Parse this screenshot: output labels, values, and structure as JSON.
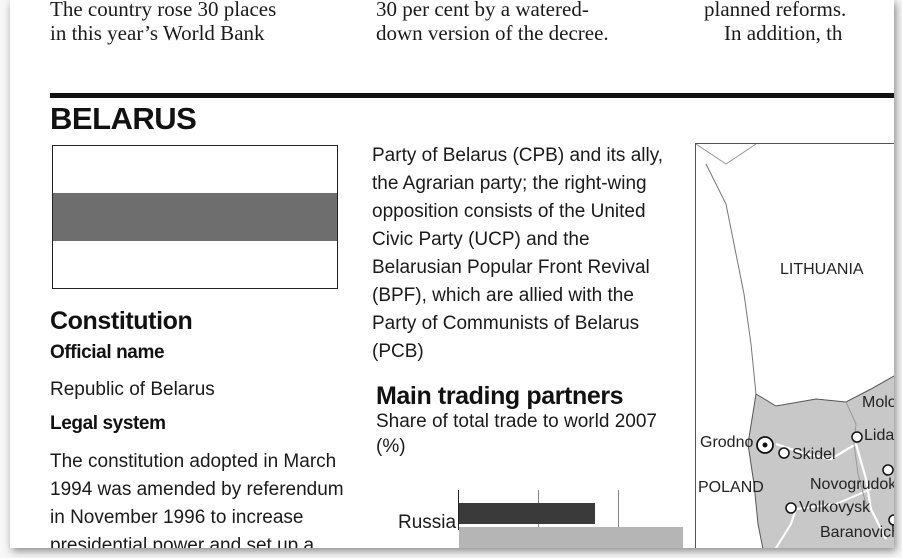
{
  "top_text": {
    "col1": [
      "The country rose 30 places",
      "in this year’s World Bank"
    ],
    "col2": [
      "30 per cent by a watered-",
      "down version of the decree."
    ],
    "col3": [
      "planned reforms.",
      "In addition, th"
    ]
  },
  "country": "BELARUS",
  "flag": {
    "colors": {
      "top": "#ffffff",
      "middle": "#6e6e6e",
      "bottom": "#ffffff"
    }
  },
  "constitution": {
    "heading": "Constitution",
    "official_name_label": "Official name",
    "official_name": "Republic of Belarus",
    "legal_system_label": "Legal system",
    "legal_system_lines": [
      "The constitution adopted in March",
      "1994 was amended by referendum",
      "in November 1996 to increase",
      "presidential power and set up a"
    ]
  },
  "parties_text": [
    "Party of Belarus (CPB) and its ally,",
    "the Agrarian party; the right-wing",
    "opposition consists of the United",
    "Civic Party (UCP) and the",
    "Belarusian Popular Front Revival",
    "(BPF), which are allied with the",
    "Party of Communists of Belarus",
    "(PCB)"
  ],
  "trading": {
    "heading": "Main trading partners",
    "subtitle_lines": [
      "Share of total trade to world 2007",
      "(%)"
    ]
  },
  "chart_data": {
    "type": "bar",
    "orientation": "horizontal",
    "title": "Main trading partners",
    "subtitle": "Share of total trade to world 2007 (%)",
    "categories": [
      "Russia"
    ],
    "series": [
      {
        "values": [
          17
        ],
        "color": "#3a3a3a"
      },
      {
        "values": [
          28
        ],
        "color": "#b5b5b5"
      }
    ],
    "xlim": [
      0,
      30
    ],
    "grid": true
  },
  "map": {
    "labels": {
      "lithuania": "LITHUANIA",
      "poland": "POLAND",
      "grodno": "Grodno",
      "skidel": "Skidel",
      "lida": "Lida",
      "novogrudok": "Novogrudok",
      "volkovysk": "Volkovysk",
      "baranovichi": "Baranovichi",
      "molodechno": "Molo"
    },
    "colors": {
      "belarus": "#c8c8c8",
      "neighbour": "#ffffff",
      "border": "#555555"
    }
  }
}
